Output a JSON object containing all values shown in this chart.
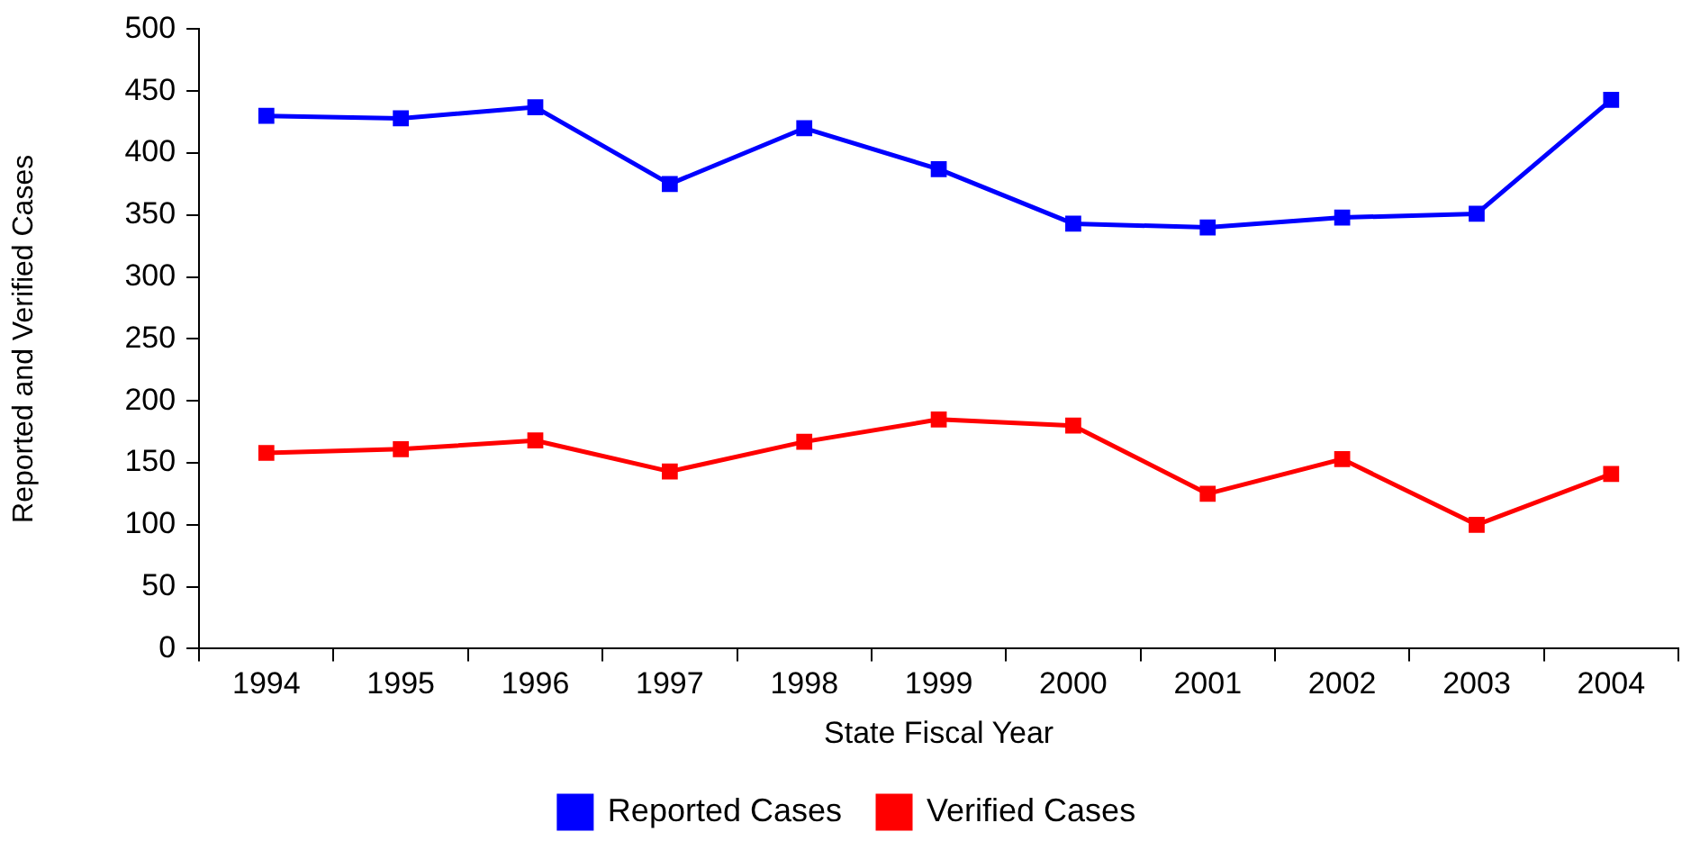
{
  "chart_data": {
    "type": "line",
    "xlabel": "State Fiscal Year",
    "ylabel": "Reported and Verified Cases",
    "categories": [
      "1994",
      "1995",
      "1996",
      "1997",
      "1998",
      "1999",
      "2000",
      "2001",
      "2002",
      "2003",
      "2004"
    ],
    "series": [
      {
        "name": "Reported Cases",
        "color": "#0000ff",
        "values": [
          430,
          428,
          437,
          375,
          420,
          387,
          343,
          340,
          348,
          351,
          443
        ]
      },
      {
        "name": "Verified Cases",
        "color": "#ff0000",
        "values": [
          158,
          161,
          168,
          143,
          167,
          185,
          180,
          125,
          153,
          100,
          141
        ]
      }
    ],
    "ylim": [
      0,
      500
    ],
    "yticks": [
      0,
      50,
      100,
      150,
      200,
      250,
      300,
      350,
      400,
      450,
      500
    ],
    "grid": false,
    "legend": "bottom",
    "marker": "square",
    "line_style": "solid"
  }
}
